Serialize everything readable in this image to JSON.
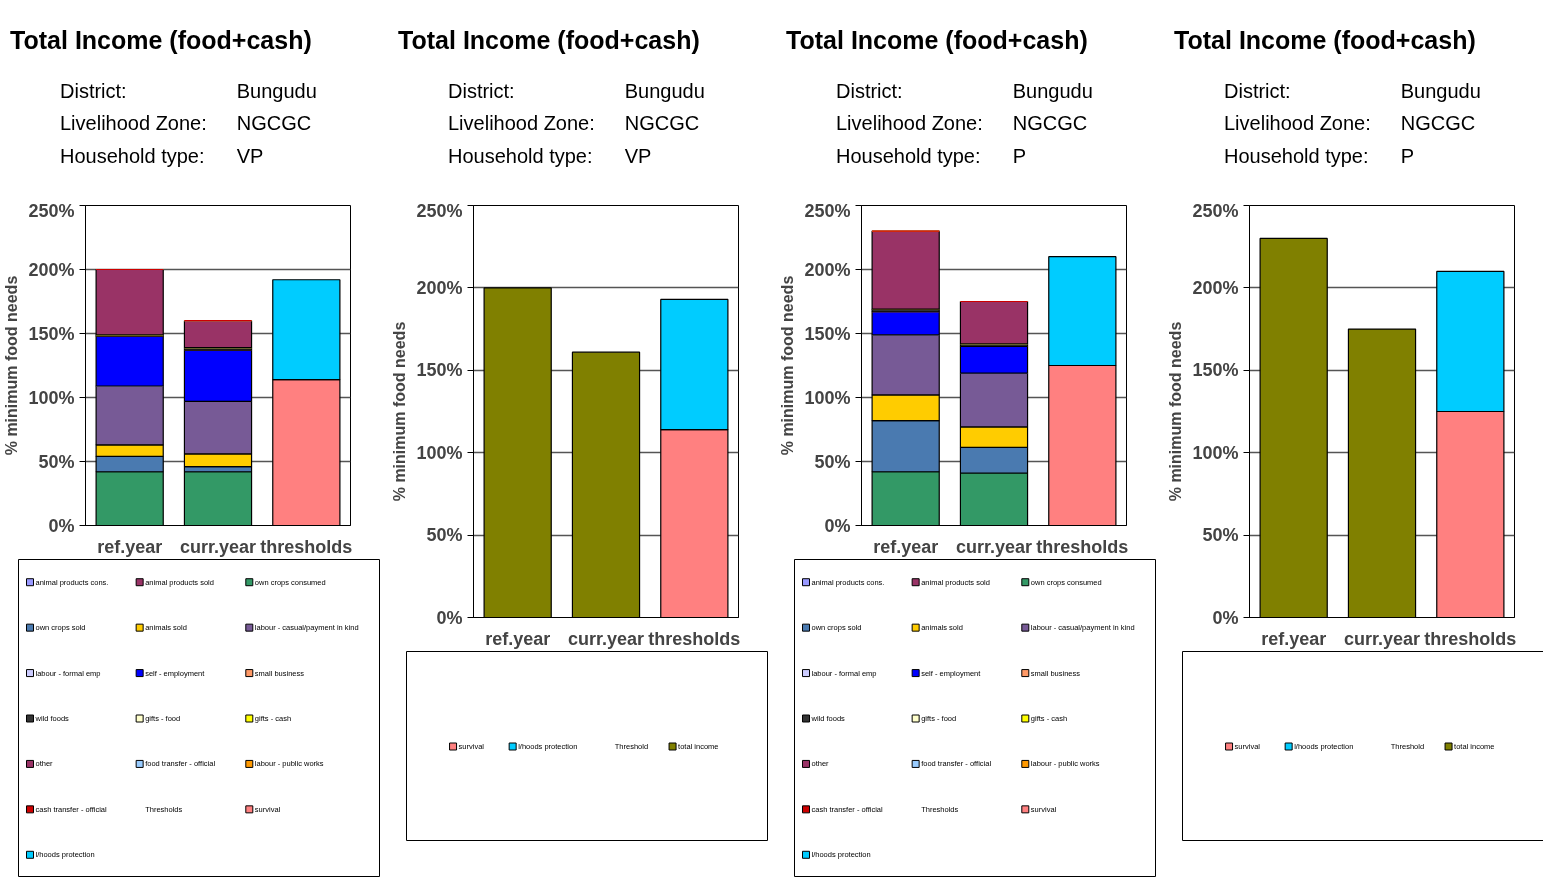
{
  "chart_data": [
    {
      "type": "bar",
      "title": "Total Income (food+cash)",
      "annotations": [
        "District:",
        "Bungudu",
        "Livelihood Zone:",
        "NGCGC",
        "Household type:",
        "VP"
      ],
      "ylabel": "% minimum food needs",
      "categories": [
        "ref.year",
        "curr.year",
        "thresholds"
      ],
      "stacked": true,
      "ylim": [
        0,
        250
      ],
      "yticks": [
        {
          "value": 0,
          "label": "0%"
        },
        {
          "value": 50,
          "label": "50%"
        },
        {
          "value": 100,
          "label": "100%"
        },
        {
          "value": 150,
          "label": "150%"
        },
        {
          "value": 200,
          "label": "200%"
        },
        {
          "value": 250,
          "label": "250%"
        }
      ],
      "grid": "y",
      "legend": "bottom",
      "series": [
        {
          "name": "animal products cons.",
          "color": "#9999ff",
          "values": [
            0,
            0,
            null
          ]
        },
        {
          "name": "animal products sold",
          "color": "#993366",
          "values": [
            0,
            0,
            null
          ]
        },
        {
          "name": "own crops consumed",
          "color": "#339966",
          "values": [
            42,
            42,
            null
          ]
        },
        {
          "name": "own crops sold",
          "color": "#4a7ab0",
          "values": [
            12,
            4,
            null
          ]
        },
        {
          "name": "animals sold",
          "color": "#ffcc00",
          "values": [
            9,
            10,
            null
          ]
        },
        {
          "name": "labour - casual/payment in kind",
          "color": "#775a96",
          "values": [
            46,
            41,
            null
          ]
        },
        {
          "name": "labour - formal emp",
          "color": "#ccccff",
          "values": [
            0,
            0,
            null
          ]
        },
        {
          "name": "self - employment",
          "color": "#0000ff",
          "values": [
            39,
            40,
            null
          ]
        },
        {
          "name": "small business",
          "color": "#ff9966",
          "values": [
            0,
            0,
            null
          ]
        },
        {
          "name": "wild foods",
          "color": "#333333",
          "values": [
            1,
            2,
            null
          ]
        },
        {
          "name": "gifts - food",
          "color": "#ffffcc",
          "values": [
            0,
            0,
            null
          ]
        },
        {
          "name": "gifts - cash",
          "color": "#ffff00",
          "values": [
            0,
            0,
            null
          ]
        },
        {
          "name": "other",
          "color": "#993366",
          "values": [
            51,
            21,
            null
          ]
        },
        {
          "name": "food transfer - official",
          "color": "#99ccff",
          "values": [
            0,
            0,
            null
          ]
        },
        {
          "name": "labour - public works",
          "color": "#ff9900",
          "values": [
            0,
            0,
            null
          ]
        },
        {
          "name": "cash transfer - official",
          "color": "#cc0000",
          "values": [
            0,
            0,
            null
          ]
        },
        {
          "name": "Thresholds",
          "values": [
            null,
            null,
            null
          ]
        },
        {
          "name": "survival",
          "color": "#ff8080",
          "values": [
            null,
            null,
            114
          ]
        },
        {
          "name": "l/hoods protection",
          "color": "#00ccff",
          "values": [
            null,
            null,
            78
          ]
        }
      ]
    },
    {
      "type": "bar",
      "title": "Total Income (food+cash)",
      "annotations": [
        "District:",
        "Bungudu",
        "Livelihood Zone:",
        "NGCGC",
        "Household type:",
        "VP"
      ],
      "ylabel": "% minimum food needs",
      "categories": [
        "ref.year",
        "curr.year",
        "thresholds"
      ],
      "stacked": true,
      "ylim": [
        0,
        250
      ],
      "yticks": [
        {
          "value": 0,
          "label": "0%"
        },
        {
          "value": 50,
          "label": "50%"
        },
        {
          "value": 100,
          "label": "100%"
        },
        {
          "value": 150,
          "label": "150%"
        },
        {
          "value": 200,
          "label": "200%"
        },
        {
          "value": 250,
          "label": "250%"
        }
      ],
      "grid": "y",
      "legend": "bottom",
      "series": [
        {
          "name": "survival",
          "color": "#ff8080",
          "values": [
            null,
            null,
            114
          ]
        },
        {
          "name": "l/hoods protection",
          "color": "#00ccff",
          "values": [
            null,
            null,
            79
          ]
        },
        {
          "name": "Threshold",
          "values": [
            null,
            null,
            null
          ]
        },
        {
          "name": "total income",
          "color": "#808000",
          "values": [
            200,
            161,
            null
          ]
        }
      ]
    },
    {
      "type": "bar",
      "title": "Total Income (food+cash)",
      "annotations": [
        "District:",
        "Bungudu",
        "Livelihood Zone:",
        "NGCGC",
        "Household type:",
        "P"
      ],
      "ylabel": "% minimum food needs",
      "categories": [
        "ref.year",
        "curr.year",
        "thresholds"
      ],
      "stacked": true,
      "ylim": [
        0,
        250
      ],
      "yticks": [
        {
          "value": 0,
          "label": "0%"
        },
        {
          "value": 50,
          "label": "50%"
        },
        {
          "value": 100,
          "label": "100%"
        },
        {
          "value": 150,
          "label": "150%"
        },
        {
          "value": 200,
          "label": "200%"
        },
        {
          "value": 250,
          "label": "250%"
        }
      ],
      "grid": "y",
      "legend": "bottom",
      "series": [
        {
          "name": "animal products cons.",
          "color": "#9999ff",
          "values": [
            0,
            0,
            null
          ]
        },
        {
          "name": "animal products sold",
          "color": "#993366",
          "values": [
            0,
            0,
            null
          ]
        },
        {
          "name": "own crops consumed",
          "color": "#339966",
          "values": [
            42,
            41,
            null
          ]
        },
        {
          "name": "own crops sold",
          "color": "#4a7ab0",
          "values": [
            40,
            20,
            null
          ]
        },
        {
          "name": "animals sold",
          "color": "#ffcc00",
          "values": [
            20,
            16,
            null
          ]
        },
        {
          "name": "labour - casual/payment in kind",
          "color": "#775a96",
          "values": [
            47,
            42,
            null
          ]
        },
        {
          "name": "labour - formal emp",
          "color": "#ccccff",
          "values": [
            0,
            0,
            null
          ]
        },
        {
          "name": "self - employment",
          "color": "#0000ff",
          "values": [
            18,
            21,
            null
          ]
        },
        {
          "name": "small business",
          "color": "#ff9966",
          "values": [
            0,
            0,
            null
          ]
        },
        {
          "name": "wild foods",
          "color": "#333333",
          "values": [
            2,
            2,
            null
          ]
        },
        {
          "name": "gifts - food",
          "color": "#ffffcc",
          "values": [
            0,
            0,
            null
          ]
        },
        {
          "name": "gifts - cash",
          "color": "#ffff00",
          "values": [
            0,
            0,
            null
          ]
        },
        {
          "name": "other",
          "color": "#993366",
          "values": [
            61,
            33,
            null
          ]
        },
        {
          "name": "food transfer - official",
          "color": "#99ccff",
          "values": [
            0,
            0,
            null
          ]
        },
        {
          "name": "labour - public works",
          "color": "#ff9900",
          "values": [
            0,
            0,
            null
          ]
        },
        {
          "name": "cash transfer - official",
          "color": "#cc0000",
          "values": [
            0,
            0,
            null
          ]
        },
        {
          "name": "Thresholds",
          "values": [
            null,
            null,
            null
          ]
        },
        {
          "name": "survival",
          "color": "#ff8080",
          "values": [
            null,
            null,
            125
          ]
        },
        {
          "name": "l/hoods protection",
          "color": "#00ccff",
          "values": [
            null,
            null,
            85
          ]
        }
      ]
    },
    {
      "type": "bar",
      "title": "Total Income (food+cash)",
      "annotations": [
        "District:",
        "Bungudu",
        "Livelihood Zone:",
        "NGCGC",
        "Household type:",
        "P"
      ],
      "ylabel": "% minimum food needs",
      "categories": [
        "ref.year",
        "curr.year",
        "thresholds"
      ],
      "stacked": true,
      "ylim": [
        0,
        250
      ],
      "yticks": [
        {
          "value": 0,
          "label": "0%"
        },
        {
          "value": 50,
          "label": "50%"
        },
        {
          "value": 100,
          "label": "100%"
        },
        {
          "value": 150,
          "label": "150%"
        },
        {
          "value": 200,
          "label": "200%"
        },
        {
          "value": 250,
          "label": "250%"
        }
      ],
      "grid": "y",
      "legend": "bottom",
      "series": [
        {
          "name": "survival",
          "color": "#ff8080",
          "values": [
            null,
            null,
            125
          ]
        },
        {
          "name": "l/hoods protection",
          "color": "#00ccff",
          "values": [
            null,
            null,
            85
          ]
        },
        {
          "name": "Threshold",
          "values": [
            null,
            null,
            null
          ]
        },
        {
          "name": "total income",
          "color": "#808000",
          "values": [
            230,
            175,
            null
          ]
        }
      ]
    }
  ]
}
